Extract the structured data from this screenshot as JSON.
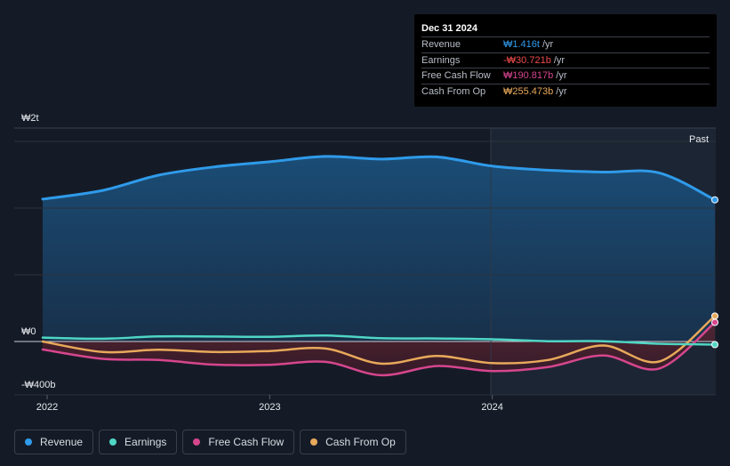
{
  "tooltip": {
    "date": "Dec 31 2024",
    "rows": [
      {
        "label": "Revenue",
        "value": "₩1.416t",
        "unit": "/yr",
        "color": "#2f9bea"
      },
      {
        "label": "Earnings",
        "value": "-₩30.721b",
        "unit": "/yr",
        "color": "#ef4b4b"
      },
      {
        "label": "Free Cash Flow",
        "value": "₩190.817b",
        "unit": "/yr",
        "color": "#d6468e"
      },
      {
        "label": "Cash From Op",
        "value": "₩255.473b",
        "unit": "/yr",
        "color": "#e8a95a"
      }
    ]
  },
  "chart_data": {
    "type": "area",
    "y_tick_labels": [
      "₩2t",
      "₩0",
      "-₩400b"
    ],
    "x_tick_labels": [
      "2022",
      "2023",
      "2024"
    ],
    "past_label": "Past",
    "ylim": [
      -400,
      2000
    ],
    "y_unit": "₩b",
    "grid": true,
    "legend_position": "bottom-left",
    "x": [
      2021.98,
      2022.25,
      2022.5,
      2022.75,
      2023.0,
      2023.25,
      2023.5,
      2023.75,
      2024.0,
      2024.25,
      2024.5,
      2024.75,
      2025.0
    ],
    "series": [
      {
        "name": "Revenue",
        "color": "#2f9bea",
        "values": [
          1423,
          1510,
          1662,
          1745,
          1796,
          1850,
          1823,
          1845,
          1753,
          1712,
          1693,
          1685,
          1416
        ]
      },
      {
        "name": "Earnings",
        "color": "#4fd6c4",
        "values": [
          39,
          28,
          51,
          50,
          47,
          60,
          33,
          30,
          22,
          3,
          3,
          -22,
          -31
        ]
      },
      {
        "name": "Free Cash Flow",
        "color": "#d6468e",
        "values": [
          -80,
          -173,
          -185,
          -231,
          -233,
          -204,
          -337,
          -245,
          -295,
          -255,
          -140,
          -270,
          191
        ]
      },
      {
        "name": "Cash From Op",
        "color": "#e8a95a",
        "values": [
          0,
          -105,
          -83,
          -105,
          -95,
          -70,
          -221,
          -145,
          -216,
          -185,
          -40,
          -200,
          255
        ]
      }
    ]
  },
  "legend": [
    {
      "label": "Revenue",
      "color": "#2f9bea"
    },
    {
      "label": "Earnings",
      "color": "#4fd6c4"
    },
    {
      "label": "Free Cash Flow",
      "color": "#d6468e"
    },
    {
      "label": "Cash From Op",
      "color": "#e8a95a"
    }
  ]
}
